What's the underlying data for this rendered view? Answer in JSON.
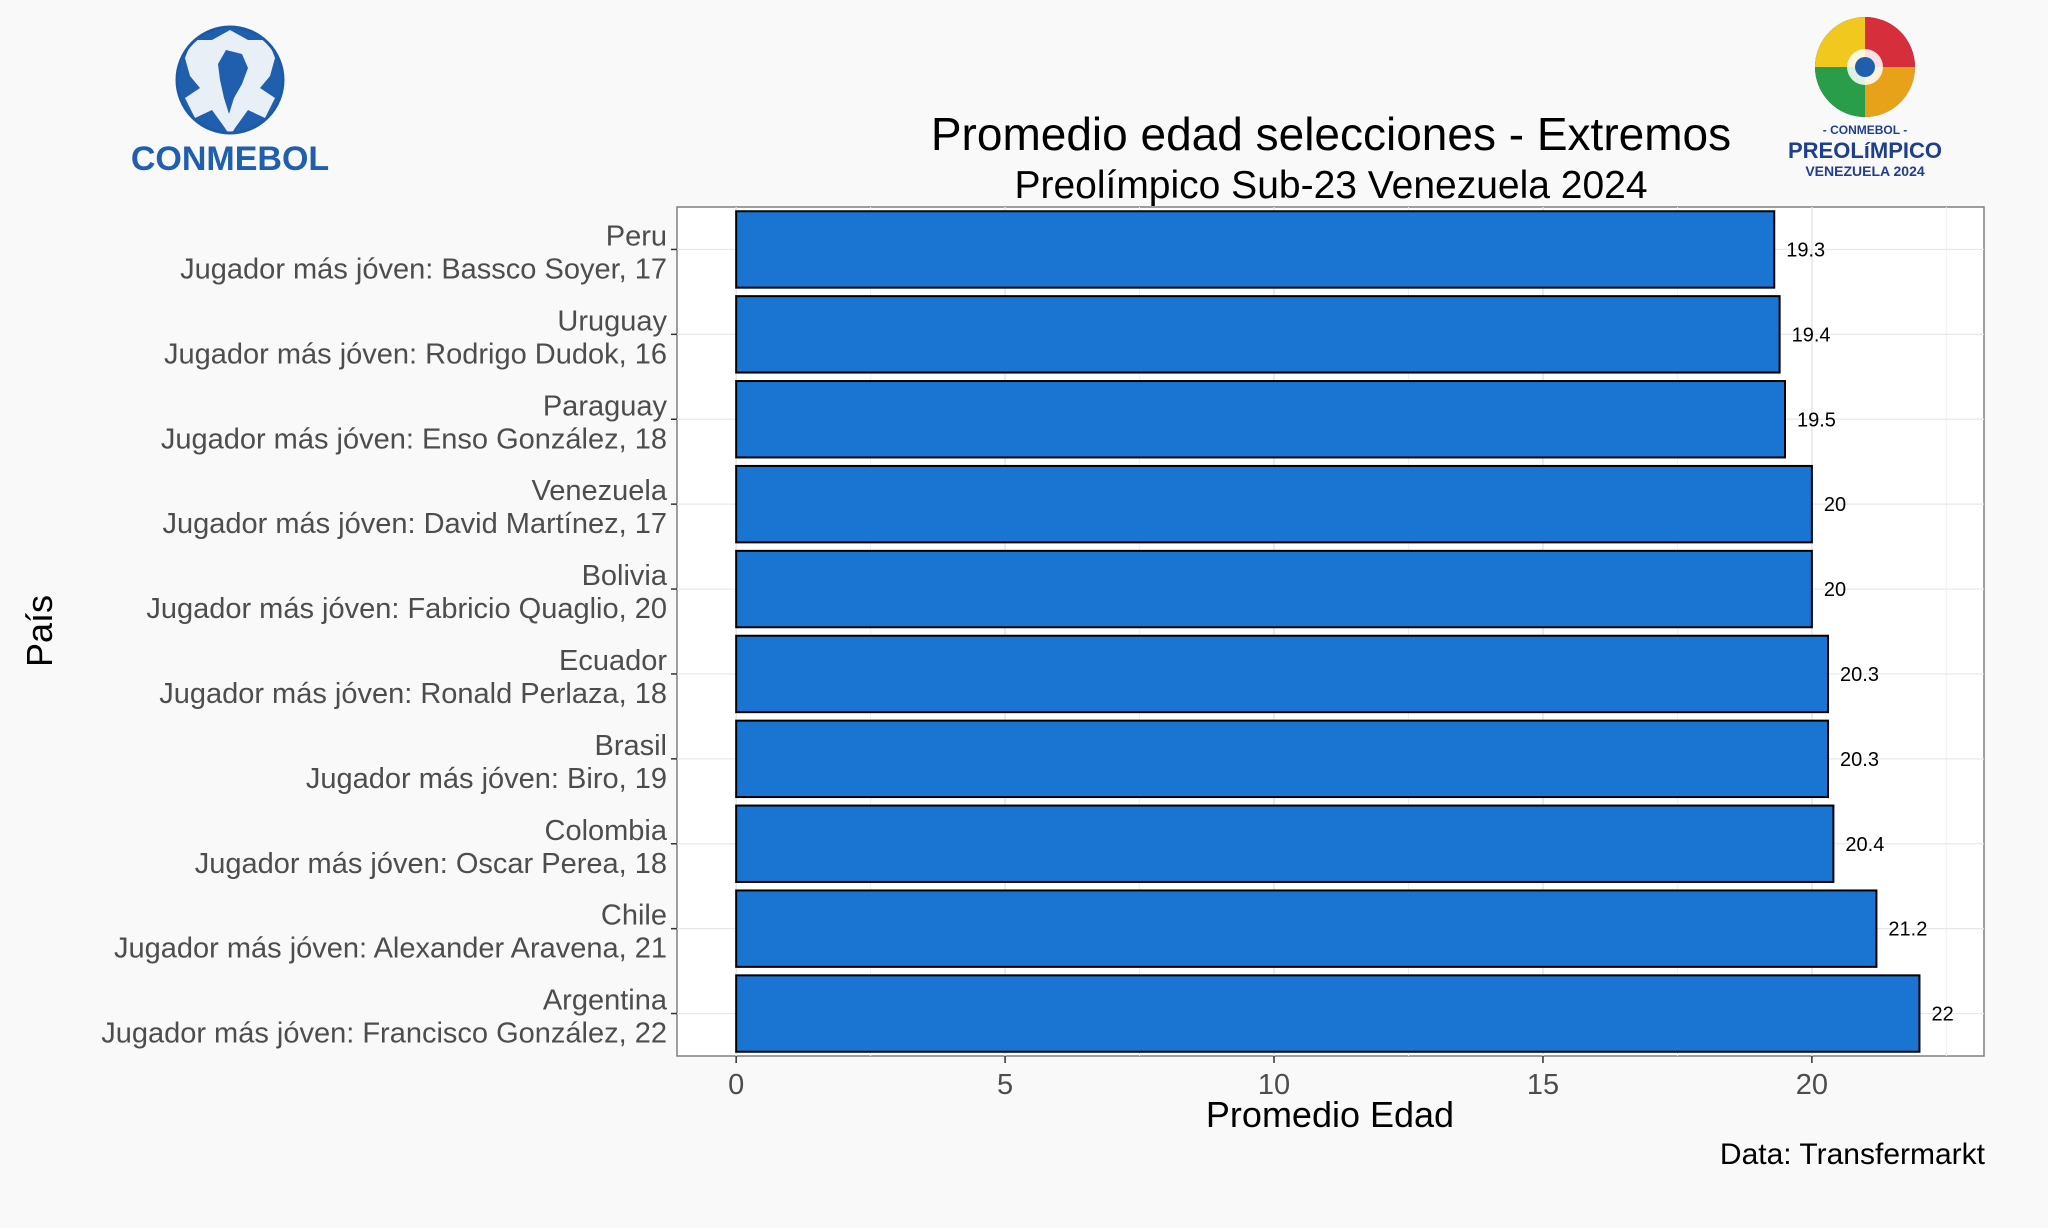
{
  "brand": {
    "conmebol_wordmark": "-CONMEBOL-",
    "event_logo_top": "- CONMEBOL -",
    "event_logo_main": "PREOLíMPICO",
    "event_logo_bottom": "VENEZUELA 2024"
  },
  "chart_data": {
    "type": "bar",
    "orientation": "horizontal",
    "title": "Promedio edad selecciones - Extremos",
    "subtitle": "Preolímpico Sub-23 Venezuela 2024",
    "xlabel": "Promedio Edad",
    "ylabel": "País",
    "xlim": [
      -1.1,
      23.2
    ],
    "xticks": [
      "0",
      "5",
      "10",
      "15",
      "20"
    ],
    "grid": true,
    "bar_color": "#1a74d2",
    "caption": "Data: Transfermarkt",
    "categories": [
      {
        "country": "Peru",
        "detail": "Jugador más jóven: Bassco Soyer, 17"
      },
      {
        "country": "Uruguay",
        "detail": "Jugador más jóven: Rodrigo Dudok, 16"
      },
      {
        "country": "Paraguay",
        "detail": "Jugador más jóven: Enso González, 18"
      },
      {
        "country": "Venezuela",
        "detail": "Jugador más jóven: David Martínez, 17"
      },
      {
        "country": "Bolivia",
        "detail": "Jugador más jóven: Fabricio Quaglio, 20"
      },
      {
        "country": "Ecuador",
        "detail": "Jugador más jóven: Ronald Perlaza, 18"
      },
      {
        "country": "Brasil",
        "detail": "Jugador más jóven: Biro, 19"
      },
      {
        "country": "Colombia",
        "detail": "Jugador más jóven: Oscar Perea, 18"
      },
      {
        "country": "Chile",
        "detail": "Jugador más jóven: Alexander Aravena, 21"
      },
      {
        "country": "Argentina",
        "detail": "Jugador más jóven: Francisco González, 22"
      }
    ],
    "values": [
      19.3,
      19.4,
      19.5,
      20,
      20,
      20.3,
      20.3,
      20.4,
      21.2,
      22
    ],
    "value_labels": [
      "19.3",
      "19.4",
      "19.5",
      "20",
      "20",
      "20.3",
      "20.3",
      "20.4",
      "21.2",
      "22"
    ]
  }
}
